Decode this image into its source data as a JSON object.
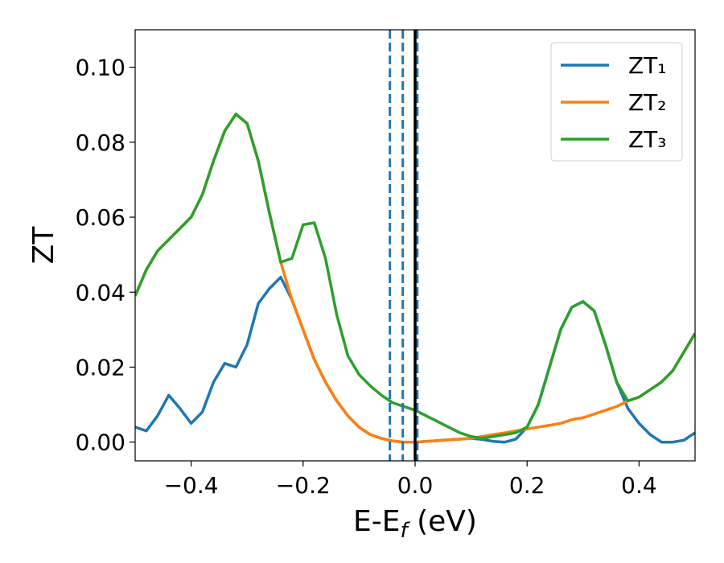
{
  "chart_data": {
    "type": "line",
    "xlabel": {
      "text": "E-E",
      "subscript": "f",
      "suffix": " (eV)"
    },
    "ylabel": "ZT",
    "x": [
      -0.5,
      -0.48,
      -0.46,
      -0.44,
      -0.42,
      -0.4,
      -0.38,
      -0.36,
      -0.34,
      -0.32,
      -0.3,
      -0.28,
      -0.26,
      -0.24,
      -0.22,
      -0.2,
      -0.18,
      -0.16,
      -0.14,
      -0.12,
      -0.1,
      -0.08,
      -0.06,
      -0.04,
      -0.02,
      0,
      0.02,
      0.04,
      0.06,
      0.08,
      0.1,
      0.12,
      0.14,
      0.16,
      0.18,
      0.2,
      0.22,
      0.24,
      0.26,
      0.28,
      0.3,
      0.32,
      0.34,
      0.36,
      0.38,
      0.4,
      0.42,
      0.44,
      0.46,
      0.48,
      0.5
    ],
    "series": [
      {
        "name": "ZT₁",
        "color": "#1f77b4",
        "values": [
          0.004,
          0.003,
          0.007,
          0.0125,
          0.009,
          0.005,
          0.008,
          0.016,
          0.021,
          0.02,
          0.026,
          0.037,
          0.041,
          0.044,
          0.038,
          0.03,
          0.022,
          0.016,
          0.011,
          0.007,
          0.004,
          0.002,
          0.001,
          0.0003,
          0,
          0,
          0.0002,
          0.0004,
          0.0006,
          0.0008,
          0.001,
          0.0007,
          0.0002,
          0,
          0.0008,
          0.004,
          0.01,
          0.02,
          0.03,
          0.036,
          0.0375,
          0.035,
          0.026,
          0.016,
          0.009,
          0.005,
          0.002,
          0,
          0,
          0.0005,
          0.0025
        ]
      },
      {
        "name": "ZT₂",
        "color": "#ff7f0e",
        "values": [
          0.039,
          0.046,
          0.051,
          0.054,
          0.057,
          0.06,
          0.066,
          0.075,
          0.083,
          0.0875,
          0.085,
          0.075,
          0.061,
          0.048,
          0.038,
          0.03,
          0.022,
          0.016,
          0.011,
          0.007,
          0.004,
          0.002,
          0.001,
          0.0003,
          0,
          0,
          0.0002,
          0.0004,
          0.0006,
          0.0008,
          0.001,
          0.0015,
          0.002,
          0.0025,
          0.003,
          0.0035,
          0.004,
          0.0045,
          0.005,
          0.006,
          0.0065,
          0.0075,
          0.0085,
          0.0095,
          0.011,
          0.012,
          0.014,
          0.016,
          0.019,
          0.024,
          0.029
        ]
      },
      {
        "name": "ZT₃",
        "color": "#2ca02c",
        "values": [
          0.039,
          0.046,
          0.051,
          0.054,
          0.057,
          0.06,
          0.066,
          0.075,
          0.083,
          0.0875,
          0.085,
          0.075,
          0.061,
          0.048,
          0.049,
          0.058,
          0.0585,
          0.049,
          0.034,
          0.023,
          0.018,
          0.015,
          0.0125,
          0.0105,
          0.0095,
          0.0085,
          0.007,
          0.0055,
          0.004,
          0.0025,
          0.0015,
          0.001,
          0.0015,
          0.002,
          0.0025,
          0.004,
          0.01,
          0.02,
          0.03,
          0.036,
          0.0375,
          0.035,
          0.026,
          0.016,
          0.011,
          0.012,
          0.014,
          0.016,
          0.019,
          0.024,
          0.029
        ]
      }
    ],
    "vlines": [
      {
        "x": -0.045,
        "color": "#1f77b4",
        "style": "dashed"
      },
      {
        "x": -0.022,
        "color": "#1f77b4",
        "style": "dashed"
      },
      {
        "x": 0.004,
        "color": "#1f77b4",
        "style": "dashed"
      },
      {
        "x": 0,
        "color": "#000000",
        "style": "solid"
      }
    ],
    "xlim": [
      -0.5,
      0.5
    ],
    "ylim": [
      -0.005,
      0.11
    ],
    "xticks": [
      {
        "value": -0.4,
        "label": "−0.4"
      },
      {
        "value": -0.2,
        "label": "−0.2"
      },
      {
        "value": 0,
        "label": "0.0"
      },
      {
        "value": 0.2,
        "label": "0.2"
      },
      {
        "value": 0.4,
        "label": "0.4"
      }
    ],
    "yticks": [
      {
        "value": 0,
        "label": "0.00"
      },
      {
        "value": 0.02,
        "label": "0.02"
      },
      {
        "value": 0.04,
        "label": "0.04"
      },
      {
        "value": 0.06,
        "label": "0.06"
      },
      {
        "value": 0.08,
        "label": "0.08"
      },
      {
        "value": 0.1,
        "label": "0.10"
      }
    ],
    "legend": "upper right",
    "grid": false
  }
}
